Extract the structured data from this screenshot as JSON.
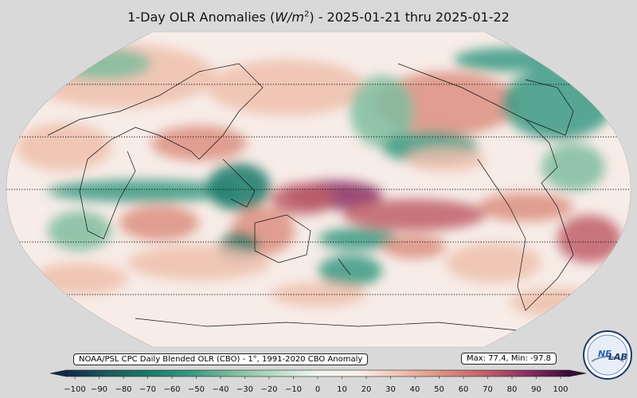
{
  "title": {
    "prefix": "1-Day OLR Anomalies (",
    "unit_letters": "W/m",
    "unit_exp": "2",
    "suffix": ") - 2025-01-21 thru 2025-01-22"
  },
  "credit": "NOAA/PSL CPC Daily Blended OLR (CBO) - 1°, 1991-2020 CBO Anomaly",
  "stats": "Max: 77.4,  Min: -97.8",
  "colorbar": {
    "min": -100,
    "max": 100,
    "ticks": [
      "−100",
      "−90",
      "−80",
      "−70",
      "−60",
      "−50",
      "−40",
      "−30",
      "−20",
      "−10",
      "0",
      "10",
      "20",
      "30",
      "40",
      "50",
      "60",
      "70",
      "80",
      "90",
      "100"
    ],
    "colors": [
      "#0d2a4a",
      "#1c5a5e",
      "#1a7a6a",
      "#3a9a82",
      "#7fbd9f",
      "#b9ddc8",
      "#eef6f0",
      "#fbeee8",
      "#eec0ad",
      "#dc8f80",
      "#c05f6a",
      "#8a2f63",
      "#3b0a3a"
    ]
  },
  "map": {
    "projection": "Robinson",
    "central_longitude": 180,
    "gridlines_latitude": [
      -60,
      -30,
      0,
      30,
      60
    ],
    "gridline_style": "dotted"
  },
  "logo": {
    "text_left": "NE",
    "text_right": "LAB",
    "icon": "nexlab-logo-icon"
  }
}
